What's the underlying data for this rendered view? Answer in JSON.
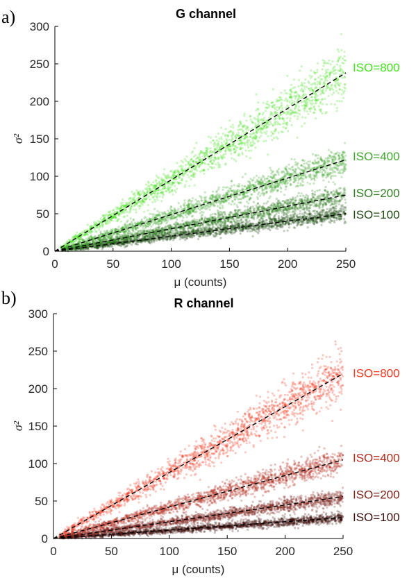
{
  "chart_data": [
    {
      "panel_label": "a)",
      "type": "scatter",
      "title": "G channel",
      "xlabel": "μ (counts)",
      "ylabel": "σ²",
      "xlim": [
        0,
        250
      ],
      "ylim": [
        0,
        300
      ],
      "xticks": [
        0,
        50,
        100,
        150,
        200,
        250
      ],
      "yticks": [
        0,
        50,
        100,
        150,
        200,
        250,
        300
      ],
      "grid": false,
      "series": [
        {
          "name": "ISO=100",
          "slope": 0.2,
          "color": "#1e4a12",
          "fit": [
            [
              0,
              0
            ],
            [
              250,
              50
            ]
          ]
        },
        {
          "name": "ISO=200",
          "slope": 0.3,
          "color": "#2f7d22",
          "fit": [
            [
              0,
              0
            ],
            [
              250,
              75
            ]
          ]
        },
        {
          "name": "ISO=400",
          "slope": 0.49,
          "color": "#3ea52c",
          "fit": [
            [
              0,
              0
            ],
            [
              250,
              122
            ]
          ]
        },
        {
          "name": "ISO=800",
          "slope": 0.95,
          "color": "#44e01e",
          "fit": [
            [
              0,
              0
            ],
            [
              250,
              238
            ]
          ]
        }
      ]
    },
    {
      "panel_label": "b)",
      "type": "scatter",
      "title": "R channel",
      "xlabel": "μ (counts)",
      "ylabel": "σ²",
      "xlim": [
        0,
        250
      ],
      "ylim": [
        0,
        300
      ],
      "xticks": [
        0,
        50,
        100,
        150,
        200,
        250
      ],
      "yticks": [
        0,
        50,
        100,
        150,
        200,
        250,
        300
      ],
      "grid": false,
      "series": [
        {
          "name": "ISO=100",
          "slope": 0.11,
          "color": "#3a0c08",
          "fit": [
            [
              0,
              0
            ],
            [
              250,
              28
            ]
          ]
        },
        {
          "name": "ISO=200",
          "slope": 0.22,
          "color": "#7a1e14",
          "fit": [
            [
              0,
              0
            ],
            [
              250,
              56
            ]
          ]
        },
        {
          "name": "ISO=400",
          "slope": 0.42,
          "color": "#b0281a",
          "fit": [
            [
              0,
              0
            ],
            [
              250,
              105
            ]
          ]
        },
        {
          "name": "ISO=800",
          "slope": 0.88,
          "color": "#f03b22",
          "fit": [
            [
              0,
              0
            ],
            [
              250,
              220
            ]
          ]
        }
      ]
    }
  ]
}
